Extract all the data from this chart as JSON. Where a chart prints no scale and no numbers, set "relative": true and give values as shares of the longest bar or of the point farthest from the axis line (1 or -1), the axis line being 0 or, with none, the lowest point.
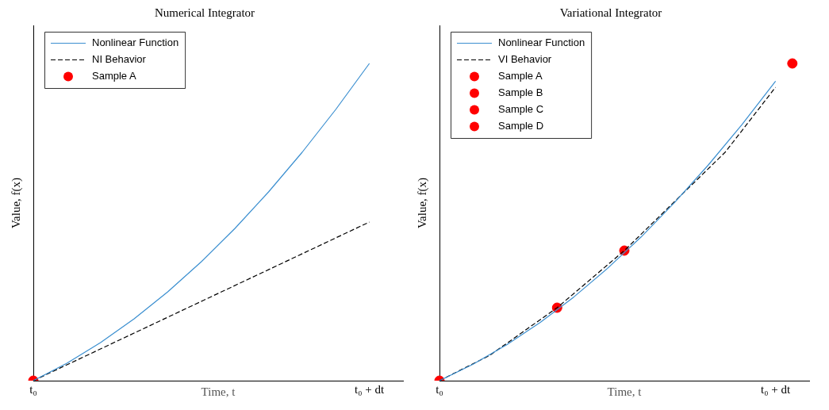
{
  "chart_data": [
    {
      "type": "line",
      "title": "Numerical Integrator",
      "xlabel": "Time, t",
      "ylabel": "Value, f(x)",
      "relative": true,
      "categories": [
        "t₀",
        null,
        null,
        null,
        null,
        null,
        null,
        null,
        null,
        null,
        null,
        null,
        null,
        null,
        null,
        null,
        null,
        null,
        null,
        null,
        "t₀ + dt",
        null,
        null
      ],
      "tick_labels": "x",
      "grid": false,
      "legend": "top left",
      "series": [
        {
          "name": "Nonlinear Function",
          "color": "#3b8fd0",
          "values": [
            0,
            null,
            0.055,
            null,
            0.12,
            null,
            0.195,
            null,
            0.28,
            null,
            0.375,
            null,
            0.48,
            null,
            0.595,
            null,
            0.72,
            null,
            0.855,
            null,
            1,
            null,
            null
          ]
        },
        {
          "name": "NI Behavior",
          "color": "#000000",
          "line_style": "dashed",
          "values": [
            0,
            null,
            null,
            null,
            null,
            null,
            null,
            null,
            null,
            null,
            null,
            null,
            null,
            null,
            null,
            null,
            null,
            null,
            null,
            null,
            0.5,
            null,
            null
          ]
        },
        {
          "name": "Sample A",
          "type": "scatter",
          "marker": "circle",
          "color": "#ff0000",
          "values": [
            0,
            null,
            null,
            null,
            null,
            null,
            null,
            null,
            null,
            null,
            null,
            null,
            null,
            null,
            null,
            null,
            null,
            null,
            null,
            null,
            null,
            null,
            null
          ]
        }
      ]
    },
    {
      "type": "line",
      "title": "Variational Integrator",
      "xlabel": "Time, t",
      "ylabel": "Value, f(x)",
      "relative": true,
      "categories": [
        "t₀",
        null,
        null,
        null,
        null,
        null,
        null,
        null,
        null,
        null,
        null,
        null,
        null,
        null,
        null,
        null,
        null,
        null,
        null,
        null,
        "t₀ + dt",
        null,
        null
      ],
      "tick_labels": "x",
      "grid": false,
      "legend": "top left",
      "series": [
        {
          "name": "Nonlinear Function",
          "color": "#3b8fd0",
          "values": [
            0,
            null,
            0.052,
            null,
            0.113,
            null,
            0.184,
            null,
            0.264,
            null,
            0.354,
            null,
            0.453,
            null,
            0.562,
            null,
            0.68,
            null,
            0.807,
            null,
            0.944,
            null,
            null
          ]
        },
        {
          "name": "VI Behavior",
          "color": "#000000",
          "line_style": "dashed",
          "values": [
            0,
            null,
            null,
            0.08,
            null,
            null,
            null,
            0.23,
            null,
            null,
            null,
            0.41,
            null,
            null,
            null,
            null,
            null,
            0.72,
            null,
            null,
            0.925,
            null,
            null
          ]
        },
        {
          "name": "Sample A",
          "type": "scatter",
          "marker": "circle",
          "color": "#ff0000",
          "values": [
            0,
            null,
            null,
            null,
            null,
            null,
            null,
            null,
            null,
            null,
            null,
            null,
            null,
            null,
            null,
            null,
            null,
            null,
            null,
            null,
            null,
            null,
            null
          ]
        },
        {
          "name": "Sample B",
          "type": "scatter",
          "marker": "circle",
          "color": "#ff0000",
          "values": [
            null,
            null,
            null,
            null,
            null,
            null,
            null,
            0.23,
            null,
            null,
            null,
            null,
            null,
            null,
            null,
            null,
            null,
            null,
            null,
            null,
            null,
            null,
            null
          ]
        },
        {
          "name": "Sample C",
          "type": "scatter",
          "marker": "circle",
          "color": "#ff0000",
          "values": [
            null,
            null,
            null,
            null,
            null,
            null,
            null,
            null,
            null,
            null,
            null,
            0.41,
            null,
            null,
            null,
            null,
            null,
            null,
            null,
            null,
            null,
            null,
            null
          ]
        },
        {
          "name": "Sample D",
          "type": "scatter",
          "marker": "circle",
          "color": "#ff0000",
          "values": [
            null,
            null,
            null,
            null,
            null,
            null,
            null,
            null,
            null,
            null,
            null,
            null,
            null,
            null,
            null,
            null,
            null,
            null,
            null,
            null,
            null,
            1,
            null
          ]
        }
      ]
    }
  ]
}
